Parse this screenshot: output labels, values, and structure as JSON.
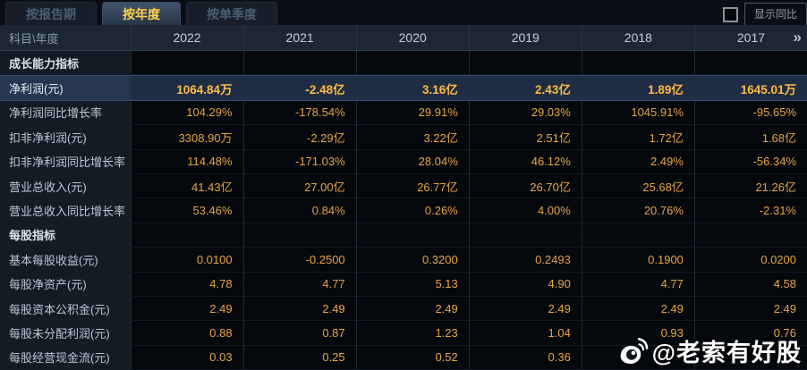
{
  "tabs": [
    {
      "label": "按报告期",
      "active": false
    },
    {
      "label": "按年度",
      "active": true
    },
    {
      "label": "按单季度",
      "active": false
    }
  ],
  "controls": {
    "show_yoy_label": "显示同比",
    "checkbox_checked": false
  },
  "table": {
    "corner_label": "科目\\年度",
    "years": [
      "2022",
      "2021",
      "2020",
      "2019",
      "2018",
      "2017"
    ],
    "more_label": "»",
    "rows": [
      {
        "type": "section",
        "label": "成长能力指标"
      },
      {
        "type": "data",
        "label": "净利润(元)",
        "highlight": true,
        "values": [
          "1064.84万",
          "-2.48亿",
          "3.16亿",
          "2.43亿",
          "1.89亿",
          "1645.01万"
        ]
      },
      {
        "type": "data",
        "label": "净利润同比增长率",
        "values": [
          "104.29%",
          "-178.54%",
          "29.91%",
          "29.03%",
          "1045.91%",
          "-95.65%"
        ]
      },
      {
        "type": "data",
        "label": "扣非净利润(元)",
        "values": [
          "3308.90万",
          "-2.29亿",
          "3.22亿",
          "2.51亿",
          "1.72亿",
          "1.68亿"
        ]
      },
      {
        "type": "data",
        "label": "扣非净利润同比增长率",
        "values": [
          "114.48%",
          "-171.03%",
          "28.04%",
          "46.12%",
          "2.49%",
          "-56.34%"
        ]
      },
      {
        "type": "data",
        "label": "营业总收入(元)",
        "values": [
          "41.43亿",
          "27.00亿",
          "26.77亿",
          "26.70亿",
          "25.68亿",
          "21.26亿"
        ]
      },
      {
        "type": "data",
        "label": "营业总收入同比增长率",
        "values": [
          "53.46%",
          "0.84%",
          "0.26%",
          "4.00%",
          "20.76%",
          "-2.31%"
        ]
      },
      {
        "type": "section",
        "label": "每股指标"
      },
      {
        "type": "data",
        "label": "基本每股收益(元)",
        "values": [
          "0.0100",
          "-0.2500",
          "0.3200",
          "0.2493",
          "0.1900",
          "0.0200"
        ]
      },
      {
        "type": "data",
        "label": "每股净资产(元)",
        "values": [
          "4.78",
          "4.77",
          "5.13",
          "4.90",
          "4.77",
          "4.58"
        ]
      },
      {
        "type": "data",
        "label": "每股资本公积金(元)",
        "values": [
          "2.49",
          "2.49",
          "2.49",
          "2.49",
          "2.49",
          "2.49"
        ]
      },
      {
        "type": "data",
        "label": "每股未分配利润(元)",
        "values": [
          "0.88",
          "0.87",
          "1.23",
          "1.04",
          "0.93",
          "0.76"
        ]
      },
      {
        "type": "data",
        "label": "每股经营现金流(元)",
        "values": [
          "0.03",
          "0.25",
          "0.52",
          "0.36",
          "",
          ""
        ]
      }
    ]
  },
  "watermark": {
    "text": "@老索有好股",
    "icon": "weibo-icon"
  },
  "colors": {
    "accent_gold": "#ffd24a",
    "value_orange": "#e9a544",
    "highlight_value": "#ffbb45",
    "highlight_row_bg": "#1e2d44",
    "header_bg": "#1c2733",
    "label_cell_bg": "#131b25",
    "value_cell_bg": "#04070b"
  }
}
